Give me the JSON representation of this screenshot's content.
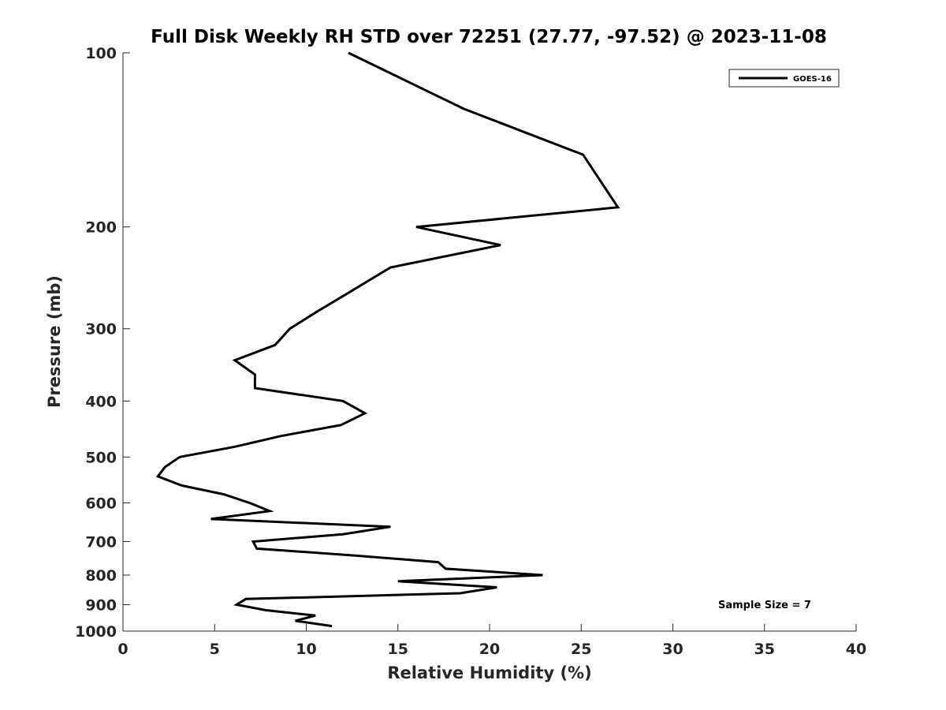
{
  "chart_data": {
    "type": "line",
    "title": "Full Disk Weekly RH STD over 72251 (27.77, -97.52) @ 2023-11-08",
    "xlabel": "Relative Humidity (%)",
    "ylabel": "Pressure (mb)",
    "xlim": [
      0,
      40
    ],
    "ylim": [
      100,
      1000
    ],
    "y_scale": "log",
    "y_reversed": true,
    "x_ticks": [
      "0",
      "5",
      "10",
      "15",
      "20",
      "25",
      "30",
      "35",
      "40"
    ],
    "y_ticks": [
      "100",
      "200",
      "300",
      "400",
      "500",
      "600",
      "700",
      "800",
      "900",
      "1000"
    ],
    "grid": false,
    "legend_position": "top-right",
    "series": [
      {
        "name": "GOES-16",
        "color": "#000000",
        "points": [
          [
            12.3,
            100
          ],
          [
            18.6,
            125
          ],
          [
            25.1,
            150
          ],
          [
            27.0,
            185
          ],
          [
            16.0,
            200
          ],
          [
            20.6,
            215
          ],
          [
            14.6,
            235
          ],
          [
            12.3,
            260
          ],
          [
            10.6,
            280
          ],
          [
            9.1,
            300
          ],
          [
            8.3,
            320
          ],
          [
            6.1,
            340
          ],
          [
            7.2,
            360
          ],
          [
            7.2,
            380
          ],
          [
            12.0,
            400
          ],
          [
            13.2,
            420
          ],
          [
            11.9,
            440
          ],
          [
            8.6,
            460
          ],
          [
            6.1,
            480
          ],
          [
            3.1,
            500
          ],
          [
            2.3,
            520
          ],
          [
            1.9,
            540
          ],
          [
            3.2,
            560
          ],
          [
            5.5,
            580
          ],
          [
            6.9,
            600
          ],
          [
            8.0,
            620
          ],
          [
            4.8,
            640
          ],
          [
            14.6,
            660
          ],
          [
            12.0,
            680
          ],
          [
            7.1,
            700
          ],
          [
            7.3,
            720
          ],
          [
            12.6,
            740
          ],
          [
            17.2,
            760
          ],
          [
            17.6,
            780
          ],
          [
            22.9,
            800
          ],
          [
            15.0,
            820
          ],
          [
            20.4,
            840
          ],
          [
            18.4,
            860
          ],
          [
            6.7,
            880
          ],
          [
            6.2,
            900
          ],
          [
            7.8,
            920
          ],
          [
            10.5,
            940
          ],
          [
            9.4,
            960
          ],
          [
            11.4,
            980
          ]
        ]
      }
    ],
    "annotation": "Sample Size = 7"
  }
}
